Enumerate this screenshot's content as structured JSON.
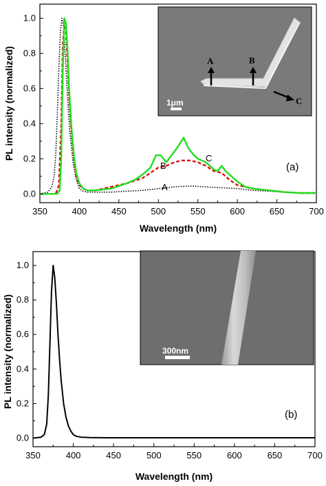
{
  "chart_data": [
    {
      "type": "line",
      "panel_label": "(a)",
      "xlabel": "Wavelength (nm)",
      "ylabel": "PL intensity (normalized)",
      "xlim": [
        350,
        700
      ],
      "ylim": [
        -0.05,
        1.08
      ],
      "xticks": [
        350,
        400,
        450,
        500,
        550,
        600,
        650,
        700
      ],
      "yticks": [
        0.0,
        0.2,
        0.4,
        0.6,
        0.8,
        1.0
      ],
      "xtick_labels": [
        "350",
        "400",
        "450",
        "500",
        "550",
        "600",
        "650",
        "700"
      ],
      "ytick_labels": [
        "0.0",
        "0.2",
        "0.4",
        "0.6",
        "0.8",
        "1.0"
      ],
      "series": [
        {
          "label": "A",
          "color": "#000000",
          "style": "dotted",
          "x": [
            350,
            360,
            365,
            368,
            370,
            372,
            374,
            376,
            378,
            380,
            382,
            385,
            388,
            392,
            396,
            400,
            405,
            410,
            420,
            440,
            460,
            480,
            500,
            520,
            540,
            560,
            580,
            600,
            620,
            640,
            660,
            680,
            700
          ],
          "y": [
            0.0,
            0.01,
            0.04,
            0.1,
            0.22,
            0.45,
            0.72,
            0.93,
            1.0,
            0.95,
            0.8,
            0.55,
            0.35,
            0.18,
            0.08,
            0.03,
            0.015,
            0.01,
            0.01,
            0.01,
            0.015,
            0.02,
            0.03,
            0.04,
            0.045,
            0.04,
            0.035,
            0.03,
            0.02,
            0.015,
            0.01,
            0.005,
            0.005
          ]
        },
        {
          "label": "B",
          "color": "#dd1111",
          "style": "dashed",
          "x": [
            350,
            370,
            374,
            377,
            379,
            381,
            383,
            385,
            387,
            390,
            393,
            396,
            400,
            405,
            410,
            420,
            440,
            460,
            480,
            490,
            500,
            510,
            520,
            530,
            540,
            550,
            560,
            570,
            580,
            590,
            600,
            620,
            640,
            660,
            680,
            700
          ],
          "y": [
            0.0,
            0.0,
            0.05,
            0.4,
            0.85,
            0.98,
            0.92,
            0.75,
            0.55,
            0.35,
            0.2,
            0.1,
            0.05,
            0.03,
            0.02,
            0.02,
            0.04,
            0.06,
            0.09,
            0.12,
            0.15,
            0.16,
            0.18,
            0.19,
            0.19,
            0.18,
            0.16,
            0.13,
            0.12,
            0.08,
            0.05,
            0.03,
            0.02,
            0.01,
            0.005,
            0.005
          ]
        },
        {
          "label": "C",
          "color": "#22dd22",
          "style": "solid",
          "x": [
            350,
            372,
            375,
            377,
            379,
            381,
            383,
            385,
            387,
            390,
            393,
            396,
            400,
            405,
            410,
            420,
            440,
            460,
            470,
            480,
            490,
            497,
            503,
            510,
            515,
            520,
            525,
            532,
            538,
            545,
            550,
            555,
            560,
            565,
            570,
            575,
            580,
            585,
            590,
            600,
            610,
            620,
            640,
            660,
            680,
            700
          ],
          "y": [
            0.0,
            0.0,
            0.02,
            0.2,
            0.7,
            1.0,
            0.97,
            0.82,
            0.6,
            0.38,
            0.22,
            0.12,
            0.06,
            0.03,
            0.02,
            0.02,
            0.03,
            0.06,
            0.08,
            0.11,
            0.15,
            0.22,
            0.22,
            0.18,
            0.21,
            0.24,
            0.27,
            0.32,
            0.26,
            0.22,
            0.2,
            0.19,
            0.18,
            0.16,
            0.14,
            0.13,
            0.16,
            0.13,
            0.11,
            0.07,
            0.04,
            0.03,
            0.02,
            0.01,
            0.005,
            0.005
          ]
        }
      ],
      "inset": {
        "scale_bar": "1μm",
        "markers": [
          "A",
          "B",
          "C"
        ]
      }
    },
    {
      "type": "line",
      "panel_label": "(b)",
      "xlabel": "Wavelength (nm)",
      "ylabel": "PL intensity (normalized)",
      "xlim": [
        350,
        700
      ],
      "ylim": [
        -0.05,
        1.08
      ],
      "xticks": [
        350,
        400,
        450,
        500,
        550,
        600,
        650,
        700
      ],
      "yticks": [
        0.0,
        0.2,
        0.4,
        0.6,
        0.8,
        1.0
      ],
      "xtick_labels": [
        "350",
        "400",
        "450",
        "500",
        "550",
        "600",
        "650",
        "700"
      ],
      "ytick_labels": [
        "0.0",
        "0.2",
        "0.4",
        "0.6",
        "0.8",
        "1.0"
      ],
      "series": [
        {
          "color": "#000000",
          "style": "solid",
          "x": [
            350,
            360,
            364,
            367,
            369,
            371,
            373,
            375,
            377,
            379,
            381,
            383,
            385,
            388,
            391,
            394,
            397,
            400,
            404,
            410,
            420,
            440,
            500,
            600,
            700
          ],
          "y": [
            0.0,
            0.005,
            0.02,
            0.08,
            0.25,
            0.55,
            0.85,
            1.0,
            0.93,
            0.78,
            0.6,
            0.45,
            0.33,
            0.2,
            0.12,
            0.07,
            0.04,
            0.02,
            0.01,
            0.005,
            0.003,
            0.002,
            0.002,
            0.002,
            0.002
          ]
        }
      ],
      "inset": {
        "scale_bar": "300nm"
      }
    }
  ]
}
